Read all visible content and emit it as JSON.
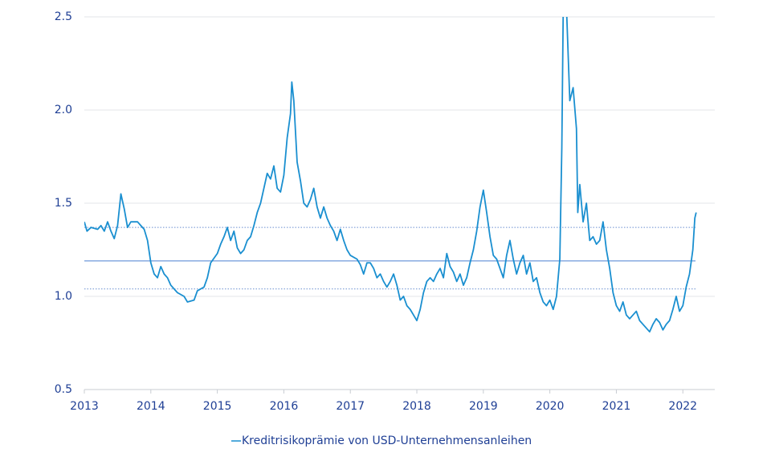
{
  "chart_data": {
    "type": "line",
    "x": [
      2013.0,
      2013.04,
      2013.1,
      2013.2,
      2013.25,
      2013.3,
      2013.35,
      2013.4,
      2013.45,
      2013.5,
      2013.55,
      2013.6,
      2013.65,
      2013.7,
      2013.8,
      2013.85,
      2013.9,
      2013.95,
      2014.0,
      2014.05,
      2014.1,
      2014.15,
      2014.2,
      2014.25,
      2014.3,
      2014.35,
      2014.4,
      2014.5,
      2014.55,
      2014.65,
      2014.7,
      2014.8,
      2014.85,
      2014.9,
      2015.0,
      2015.05,
      2015.1,
      2015.15,
      2015.2,
      2015.25,
      2015.3,
      2015.35,
      2015.4,
      2015.45,
      2015.5,
      2015.55,
      2015.6,
      2015.65,
      2015.7,
      2015.75,
      2015.8,
      2015.85,
      2015.9,
      2015.95,
      2016.0,
      2016.05,
      2016.1,
      2016.12,
      2016.15,
      2016.2,
      2016.25,
      2016.3,
      2016.35,
      2016.4,
      2016.45,
      2016.5,
      2016.55,
      2016.6,
      2016.65,
      2016.7,
      2016.75,
      2016.8,
      2016.85,
      2016.9,
      2016.95,
      2017.0,
      2017.1,
      2017.15,
      2017.2,
      2017.25,
      2017.3,
      2017.35,
      2017.4,
      2017.45,
      2017.5,
      2017.55,
      2017.6,
      2017.65,
      2017.7,
      2017.75,
      2017.8,
      2017.85,
      2017.9,
      2017.95,
      2018.0,
      2018.05,
      2018.1,
      2018.15,
      2018.2,
      2018.25,
      2018.3,
      2018.35,
      2018.4,
      2018.45,
      2018.5,
      2018.55,
      2018.6,
      2018.65,
      2018.7,
      2018.75,
      2018.8,
      2018.85,
      2018.9,
      2018.95,
      2019.0,
      2019.05,
      2019.1,
      2019.15,
      2019.2,
      2019.25,
      2019.3,
      2019.35,
      2019.4,
      2019.45,
      2019.5,
      2019.55,
      2019.6,
      2019.65,
      2019.7,
      2019.75,
      2019.8,
      2019.85,
      2019.9,
      2019.95,
      2020.0,
      2020.05,
      2020.1,
      2020.15,
      2020.18,
      2020.2,
      2020.25,
      2020.3,
      2020.35,
      2020.4,
      2020.42,
      2020.45,
      2020.5,
      2020.55,
      2020.6,
      2020.65,
      2020.7,
      2020.75,
      2020.8,
      2020.85,
      2020.9,
      2020.95,
      2021.0,
      2021.05,
      2021.1,
      2021.15,
      2021.2,
      2021.25,
      2021.3,
      2021.35,
      2021.4,
      2021.45,
      2021.5,
      2021.55,
      2021.6,
      2021.65,
      2021.7,
      2021.75,
      2021.8,
      2021.85,
      2021.9,
      2021.95,
      2022.0,
      2022.05,
      2022.1,
      2022.15,
      2022.18,
      2022.2
    ],
    "series": [
      {
        "name": "Kreditrisikoprämie von USD-Unternehmensanleihen",
        "color": "#1a8fd0",
        "values": [
          1.4,
          1.35,
          1.37,
          1.36,
          1.38,
          1.35,
          1.4,
          1.35,
          1.31,
          1.38,
          1.55,
          1.47,
          1.37,
          1.4,
          1.4,
          1.38,
          1.36,
          1.3,
          1.18,
          1.12,
          1.1,
          1.16,
          1.12,
          1.1,
          1.06,
          1.04,
          1.02,
          1.0,
          0.97,
          0.98,
          1.03,
          1.05,
          1.1,
          1.18,
          1.23,
          1.28,
          1.32,
          1.37,
          1.3,
          1.35,
          1.26,
          1.23,
          1.25,
          1.3,
          1.32,
          1.38,
          1.45,
          1.5,
          1.58,
          1.66,
          1.63,
          1.7,
          1.58,
          1.56,
          1.65,
          1.85,
          1.98,
          2.15,
          2.05,
          1.72,
          1.62,
          1.5,
          1.48,
          1.52,
          1.58,
          1.48,
          1.42,
          1.48,
          1.42,
          1.38,
          1.35,
          1.3,
          1.36,
          1.3,
          1.25,
          1.22,
          1.2,
          1.17,
          1.12,
          1.18,
          1.18,
          1.15,
          1.1,
          1.12,
          1.08,
          1.05,
          1.08,
          1.12,
          1.06,
          0.98,
          1.0,
          0.95,
          0.93,
          0.9,
          0.87,
          0.93,
          1.02,
          1.08,
          1.1,
          1.08,
          1.12,
          1.15,
          1.1,
          1.23,
          1.16,
          1.13,
          1.08,
          1.12,
          1.06,
          1.1,
          1.18,
          1.25,
          1.35,
          1.48,
          1.57,
          1.45,
          1.32,
          1.22,
          1.2,
          1.15,
          1.1,
          1.22,
          1.3,
          1.2,
          1.12,
          1.18,
          1.22,
          1.12,
          1.18,
          1.08,
          1.1,
          1.02,
          0.97,
          0.95,
          0.98,
          0.93,
          1.0,
          1.2,
          1.8,
          2.5,
          2.55,
          2.05,
          2.12,
          1.9,
          1.45,
          1.6,
          1.4,
          1.5,
          1.3,
          1.32,
          1.28,
          1.3,
          1.4,
          1.25,
          1.15,
          1.02,
          0.95,
          0.92,
          0.97,
          0.9,
          0.88,
          0.9,
          0.92,
          0.87,
          0.85,
          0.83,
          0.81,
          0.85,
          0.88,
          0.86,
          0.82,
          0.85,
          0.87,
          0.93,
          1.0,
          0.92,
          0.95,
          1.05,
          1.12,
          1.25,
          1.42,
          1.45
        ]
      }
    ],
    "hlines": [
      {
        "value": 1.19,
        "style": "solid"
      },
      {
        "value": 1.37,
        "style": "dotted"
      },
      {
        "value": 1.04,
        "style": "dotted"
      }
    ],
    "xlim": [
      2013,
      2022.48
    ],
    "xticks": [
      2013,
      2014,
      2015,
      2016,
      2017,
      2018,
      2019,
      2020,
      2021,
      2022
    ],
    "ylim": [
      0.5,
      2.5
    ],
    "yticks": [
      0.5,
      {
        "value": 1,
        "label": "1.0"
      },
      1.5,
      {
        "value": 2,
        "label": "2.0"
      },
      2.5
    ],
    "grid": true,
    "legend": "bottom"
  }
}
